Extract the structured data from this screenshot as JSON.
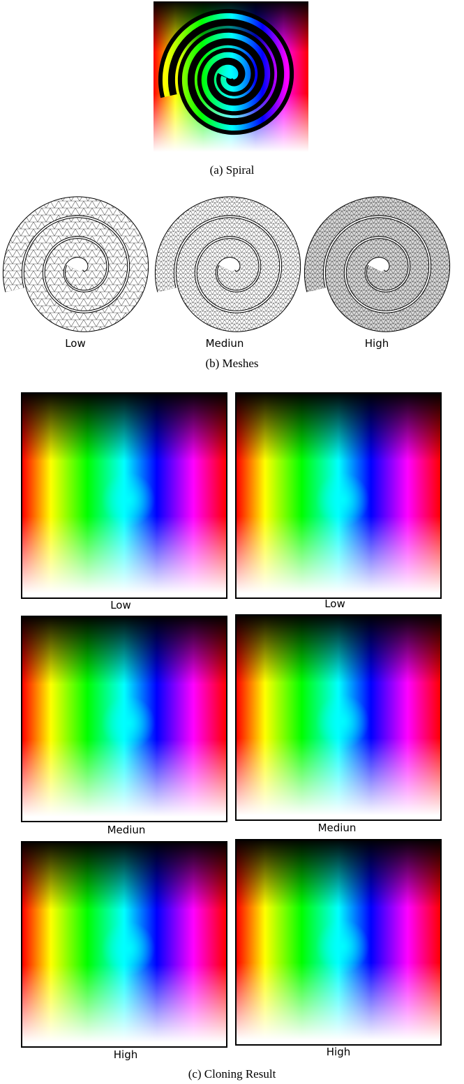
{
  "figure_a": {
    "caption": "(a) Spiral"
  },
  "figure_b": {
    "caption": "(b) Meshes",
    "labels": [
      "Low",
      "Mediun",
      "High"
    ]
  },
  "figure_c": {
    "caption": "(c) Cloning Result",
    "rows": [
      [
        "Low",
        "Low"
      ],
      [
        "Mediun",
        "Mediun"
      ],
      [
        "High",
        "High"
      ]
    ]
  }
}
